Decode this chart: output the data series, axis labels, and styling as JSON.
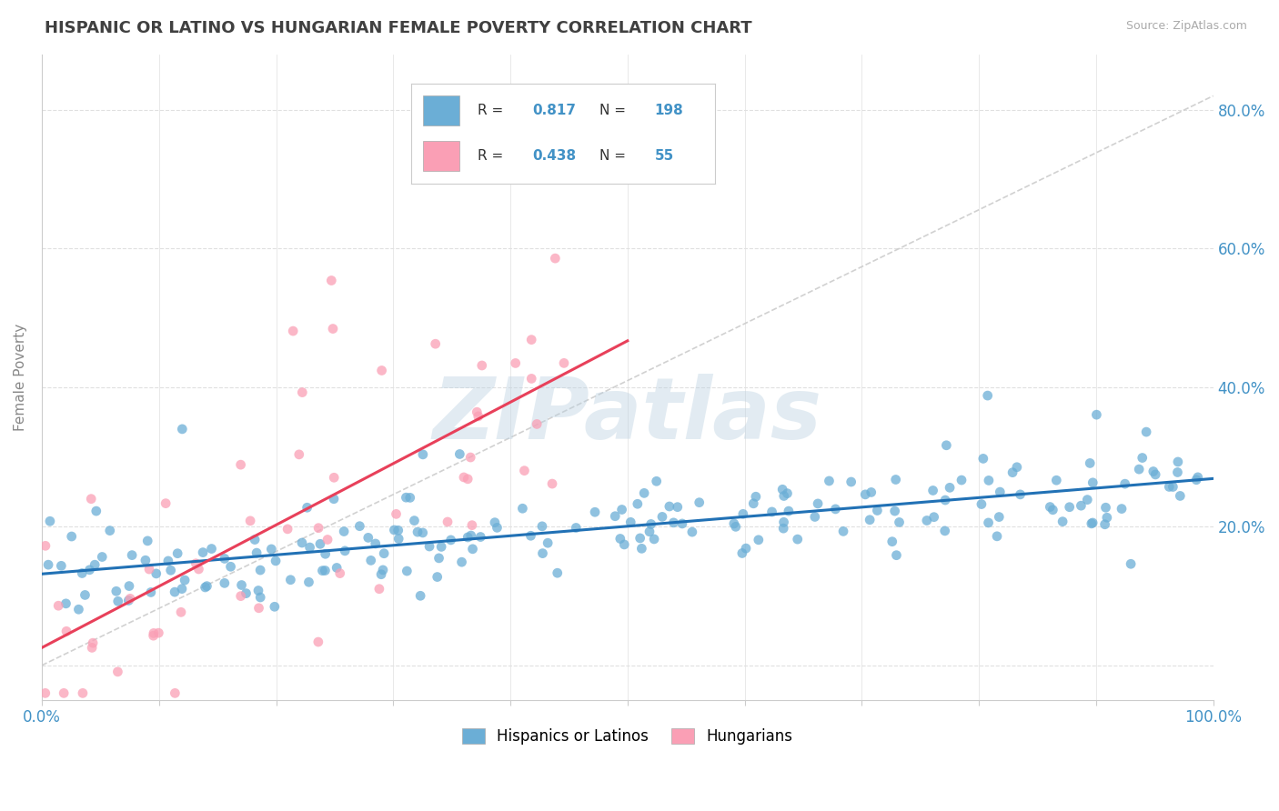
{
  "title": "HISPANIC OR LATINO VS HUNGARIAN FEMALE POVERTY CORRELATION CHART",
  "source_text": "Source: ZipAtlas.com",
  "ylabel": "Female Poverty",
  "legend_label_1": "Hispanics or Latinos",
  "legend_label_2": "Hungarians",
  "r1": 0.817,
  "n1": 198,
  "r2": 0.438,
  "n2": 55,
  "color_blue": "#6baed6",
  "color_pink": "#fa9fb5",
  "line_color_blue": "#2171b5",
  "line_color_pink": "#e8405a",
  "trend_line_color": "#cccccc",
  "xlim": [
    0.0,
    1.0
  ],
  "ylim": [
    -0.05,
    0.88
  ],
  "x_ticks": [
    0.0,
    0.1,
    0.2,
    0.3,
    0.4,
    0.5,
    0.6,
    0.7,
    0.8,
    0.9,
    1.0
  ],
  "x_tick_labels": [
    "0.0%",
    "",
    "",
    "",
    "",
    "",
    "",
    "",
    "",
    "",
    "100.0%"
  ],
  "y_ticks": [
    0.0,
    0.2,
    0.4,
    0.6,
    0.8
  ],
  "y_tick_labels": [
    "",
    "20.0%",
    "40.0%",
    "60.0%",
    "80.0%"
  ],
  "watermark_text": "ZIPatlas",
  "background_color": "#ffffff",
  "grid_color": "#e0e0e0",
  "title_color": "#404040",
  "axis_label_color": "#888888",
  "tick_color": "#4292c6",
  "seed_blue": 42,
  "seed_pink": 99
}
